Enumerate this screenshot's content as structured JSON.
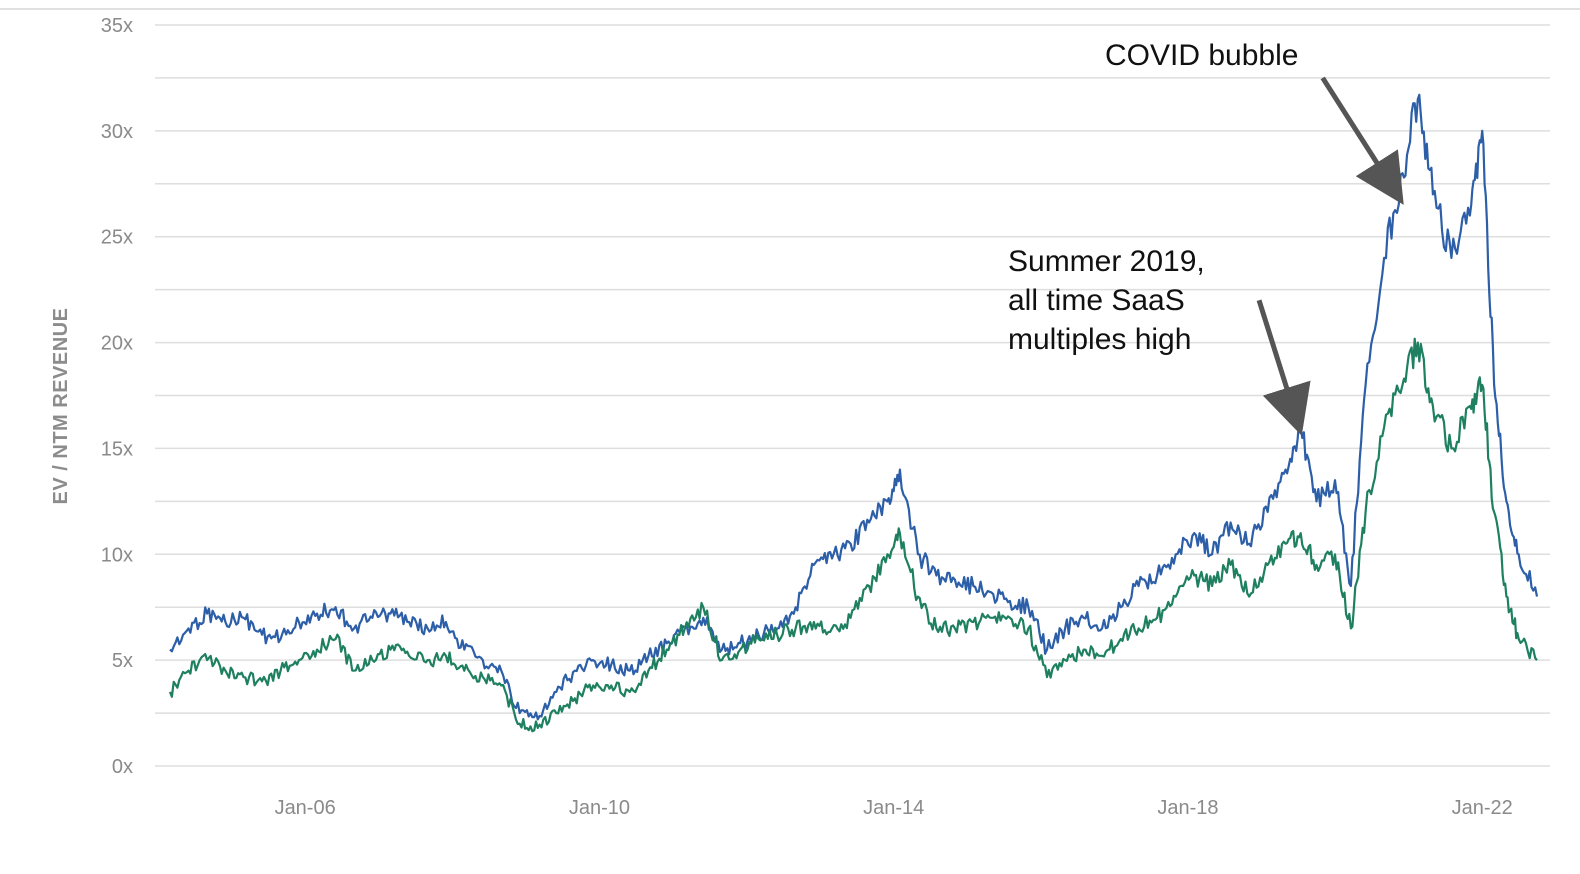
{
  "colors": {
    "series_1": "#2d5fa8",
    "series_2": "#1e8060",
    "grid": "#dedede",
    "arrow": "#555555",
    "tick_text": "#8a8a8a",
    "axis_title_text": "#8c8c8c"
  },
  "chart_data": {
    "type": "line",
    "title": "",
    "xlabel": "",
    "ylabel": "EV / NTM REVENUE",
    "x_range": [
      "2004-03-01",
      "2022-09-30"
    ],
    "ylim": [
      0,
      35
    ],
    "y_ticks": [
      0,
      5,
      10,
      15,
      20,
      25,
      30,
      35
    ],
    "y_tick_labels": [
      "0x",
      "5x",
      "10x",
      "15x",
      "20x",
      "25x",
      "30x",
      "35x"
    ],
    "x_ticks": [
      "2006-01-01",
      "2010-01-01",
      "2014-01-01",
      "2018-01-01",
      "2022-01-01"
    ],
    "x_tick_labels": [
      "Jan-06",
      "Jan-10",
      "Jan-14",
      "Jan-18",
      "Jan-22"
    ],
    "grid": true,
    "legend": "none",
    "series": [
      {
        "color": "#2d5fa8",
        "x": [
          "2004-03-01",
          "2004-06-01",
          "2004-09-01",
          "2004-12-01",
          "2005-03-01",
          "2005-06-01",
          "2005-09-01",
          "2005-12-01",
          "2006-03-01",
          "2006-06-01",
          "2006-09-01",
          "2006-12-01",
          "2007-03-01",
          "2007-06-01",
          "2007-09-01",
          "2007-12-01",
          "2008-03-01",
          "2008-06-01",
          "2008-09-01",
          "2008-12-01",
          "2009-03-01",
          "2009-06-01",
          "2009-09-01",
          "2009-12-01",
          "2010-03-01",
          "2010-06-01",
          "2010-09-01",
          "2010-12-01",
          "2011-03-01",
          "2011-06-01",
          "2011-09-01",
          "2011-12-01",
          "2012-03-01",
          "2012-06-01",
          "2012-09-01",
          "2012-12-01",
          "2013-03-01",
          "2013-06-01",
          "2013-09-01",
          "2013-12-01",
          "2014-02-01",
          "2014-05-01",
          "2014-08-01",
          "2014-11-01",
          "2015-02-01",
          "2015-05-01",
          "2015-08-01",
          "2015-11-01",
          "2016-02-01",
          "2016-05-01",
          "2016-08-01",
          "2016-11-01",
          "2017-02-01",
          "2017-05-01",
          "2017-08-01",
          "2017-11-01",
          "2018-02-01",
          "2018-05-01",
          "2018-08-01",
          "2018-11-01",
          "2019-02-01",
          "2019-05-01",
          "2019-07-15",
          "2019-10-01",
          "2020-01-01",
          "2020-03-20",
          "2020-06-01",
          "2020-09-01",
          "2020-12-01",
          "2021-02-15",
          "2021-05-01",
          "2021-08-01",
          "2021-11-01",
          "2022-01-01",
          "2022-03-01",
          "2022-05-01",
          "2022-07-01",
          "2022-09-30"
        ],
        "values": [
          5.5,
          6.5,
          7.2,
          6.8,
          7.0,
          6.2,
          6.0,
          6.8,
          7.2,
          7.5,
          6.5,
          7.0,
          7.2,
          6.8,
          6.5,
          6.8,
          5.5,
          5.0,
          4.5,
          2.5,
          2.2,
          3.5,
          4.5,
          5.0,
          4.8,
          4.5,
          5.2,
          5.8,
          6.5,
          7.0,
          5.5,
          5.8,
          6.2,
          6.5,
          7.5,
          9.5,
          9.8,
          10.5,
          11.5,
          12.5,
          14.0,
          10.0,
          9.0,
          8.8,
          8.5,
          8.2,
          7.8,
          7.5,
          5.5,
          6.5,
          7.0,
          6.5,
          7.5,
          8.5,
          9.0,
          10.0,
          11.0,
          10.0,
          11.5,
          10.5,
          12.0,
          14.0,
          16.0,
          12.5,
          13.5,
          8.5,
          18.0,
          24.0,
          28.0,
          31.5,
          27.0,
          24.0,
          26.0,
          30.0,
          18.0,
          12.5,
          10.0,
          8.0
        ]
      },
      {
        "color": "#1e8060",
        "x": [
          "2004-03-01",
          "2004-06-01",
          "2004-09-01",
          "2004-12-01",
          "2005-03-01",
          "2005-06-01",
          "2005-09-01",
          "2005-12-01",
          "2006-03-01",
          "2006-06-01",
          "2006-09-01",
          "2006-12-01",
          "2007-03-01",
          "2007-06-01",
          "2007-09-01",
          "2007-12-01",
          "2008-03-01",
          "2008-06-01",
          "2008-09-01",
          "2008-12-01",
          "2009-03-01",
          "2009-06-01",
          "2009-09-01",
          "2009-12-01",
          "2010-03-01",
          "2010-06-01",
          "2010-09-01",
          "2010-12-01",
          "2011-03-01",
          "2011-06-01",
          "2011-09-01",
          "2011-12-01",
          "2012-03-01",
          "2012-06-01",
          "2012-09-01",
          "2012-12-01",
          "2013-03-01",
          "2013-06-01",
          "2013-09-01",
          "2013-12-01",
          "2014-02-01",
          "2014-05-01",
          "2014-08-01",
          "2014-11-01",
          "2015-02-01",
          "2015-05-01",
          "2015-08-01",
          "2015-11-01",
          "2016-02-01",
          "2016-05-01",
          "2016-08-01",
          "2016-11-01",
          "2017-02-01",
          "2017-05-01",
          "2017-08-01",
          "2017-11-01",
          "2018-02-01",
          "2018-05-01",
          "2018-08-01",
          "2018-11-01",
          "2019-02-01",
          "2019-05-01",
          "2019-07-15",
          "2019-10-01",
          "2020-01-01",
          "2020-03-20",
          "2020-06-01",
          "2020-09-01",
          "2020-12-01",
          "2021-02-15",
          "2021-05-01",
          "2021-08-01",
          "2021-11-01",
          "2022-01-01",
          "2022-03-01",
          "2022-05-01",
          "2022-07-01",
          "2022-09-30"
        ],
        "values": [
          3.5,
          4.5,
          5.0,
          4.5,
          4.2,
          4.0,
          4.5,
          5.0,
          5.5,
          6.0,
          4.5,
          5.0,
          5.5,
          5.2,
          5.0,
          5.2,
          4.5,
          4.2,
          3.8,
          2.0,
          1.8,
          2.5,
          3.2,
          3.8,
          3.8,
          3.5,
          4.5,
          5.5,
          6.5,
          7.5,
          5.0,
          5.5,
          6.0,
          6.2,
          6.5,
          6.8,
          6.5,
          7.0,
          8.5,
          10.0,
          11.0,
          8.0,
          6.5,
          6.5,
          6.8,
          7.0,
          7.0,
          6.5,
          4.2,
          5.0,
          5.5,
          5.2,
          6.0,
          6.5,
          7.0,
          8.0,
          9.0,
          8.5,
          9.5,
          8.0,
          9.5,
          10.5,
          11.0,
          9.5,
          10.0,
          6.5,
          12.0,
          16.0,
          18.0,
          20.0,
          17.0,
          15.0,
          17.0,
          18.0,
          12.0,
          8.0,
          6.0,
          5.0
        ]
      }
    ],
    "annotations": [
      {
        "lines": [
          "COVID bubble"
        ],
        "arrow_from": [
          "2019-11-01",
          32.5
        ],
        "arrow_to": [
          "2020-10-15",
          27.3
        ]
      },
      {
        "lines": [
          "Summer 2019,",
          "all time SaaS",
          "multiples high"
        ],
        "arrow_from": [
          "2018-12-20",
          22.0
        ],
        "arrow_to": [
          "2019-06-20",
          16.5
        ]
      }
    ]
  }
}
